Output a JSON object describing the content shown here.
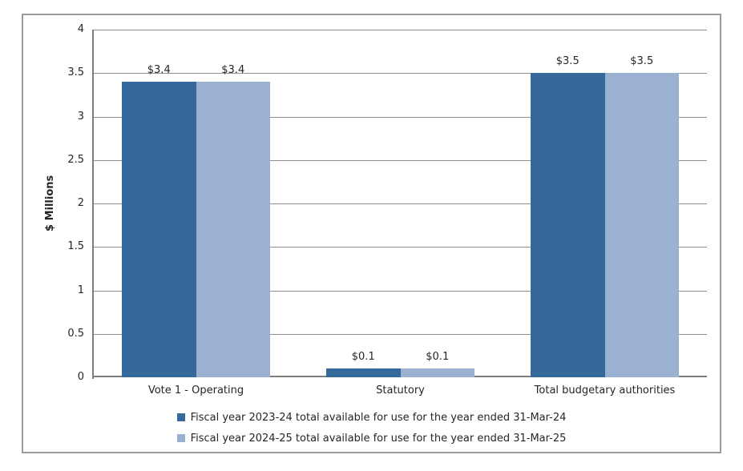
{
  "chart_data": {
    "type": "bar",
    "categories": [
      "Vote 1 - Operating",
      "Statutory",
      "Total budgetary authorities"
    ],
    "series": [
      {
        "name": "Fiscal year 2023-24 total available for use for the year ended 31-Mar-24",
        "color": "#35689B",
        "values": [
          3.4,
          0.1,
          3.5
        ],
        "data_labels": [
          "$3.4",
          "$0.1",
          "$3.5"
        ]
      },
      {
        "name": "Fiscal year 2024-25 total available for use for the year ended 31-Mar-25",
        "color": "#9BB1D2",
        "values": [
          3.4,
          0.1,
          3.5
        ],
        "data_labels": [
          "$3.4",
          "$0.1",
          "$3.5"
        ]
      }
    ],
    "title": "",
    "xlabel": "",
    "ylabel": "$ Millions",
    "ylim": [
      0,
      4
    ],
    "ytick_interval": 0.5,
    "yticks": [
      0,
      0.5,
      1,
      1.5,
      2,
      2.5,
      3,
      3.5,
      4
    ],
    "ytick_labels": [
      "0",
      "0.5",
      "1",
      "1.5",
      "2",
      "2.5",
      "3",
      "3.5",
      "4"
    ],
    "grid": "horizontal",
    "legend_position": "bottom"
  },
  "colors": {
    "series1": "#35689B",
    "series2": "#9BB1D2",
    "gridline": "#8F8F8F",
    "axis": "#7D7D7D",
    "frame_border": "#9B9B9B",
    "text": "#262626",
    "background": "#FFFFFF"
  }
}
